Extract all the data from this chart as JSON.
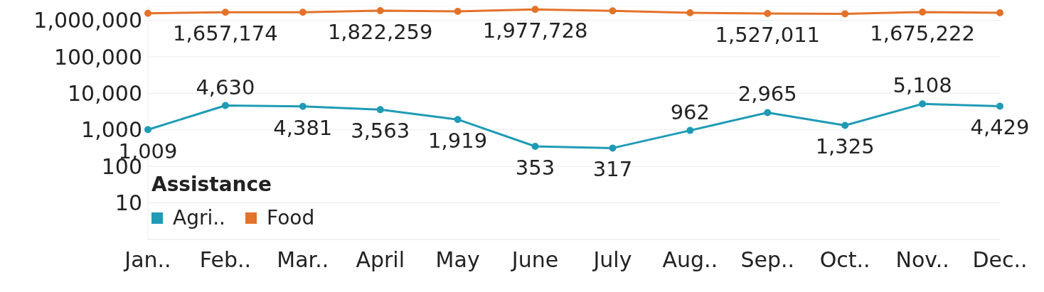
{
  "chart_data": {
    "type": "line",
    "categories": [
      "Jan..",
      "Feb..",
      "Mar..",
      "April",
      "May",
      "June",
      "July",
      "Aug..",
      "Sep..",
      "Oct..",
      "Nov..",
      "Dec.."
    ],
    "series": [
      {
        "name": "Agri..",
        "color": "#1f9bb5",
        "values": [
          1009,
          4630,
          4381,
          3563,
          1919,
          353,
          317,
          962,
          2965,
          1325,
          5108,
          4429
        ],
        "value_labels": [
          "1,009",
          "4,630",
          "4,381",
          "3,563",
          "1,919",
          "353",
          "317",
          "962",
          "2,965",
          "1,325",
          "5,108",
          "4,429"
        ]
      },
      {
        "name": "Food",
        "color": "#e3722a",
        "values": [
          1550000,
          1657174,
          1650000,
          1822259,
          1750000,
          1977728,
          1800000,
          1600000,
          1527011,
          1500000,
          1675222,
          1600000
        ],
        "value_labels": [
          null,
          "1,657,174",
          null,
          "1,822,259",
          null,
          "1,977,728",
          null,
          null,
          "1,527,011",
          null,
          "1,675,222",
          null
        ]
      }
    ],
    "log": true,
    "ylim": [
      1,
      2500000
    ],
    "yticks": [
      10,
      100,
      {
        "value": 1000,
        "label": "1,000"
      },
      {
        "value": 10000,
        "label": "10,000"
      },
      {
        "value": 100000,
        "label": "100,000"
      },
      {
        "value": 1000000,
        "label": "1,000,000"
      }
    ],
    "grid": "y",
    "legend": "bottom left",
    "legend_title": "Assistance",
    "marker": "circle",
    "line_style": "solid"
  }
}
